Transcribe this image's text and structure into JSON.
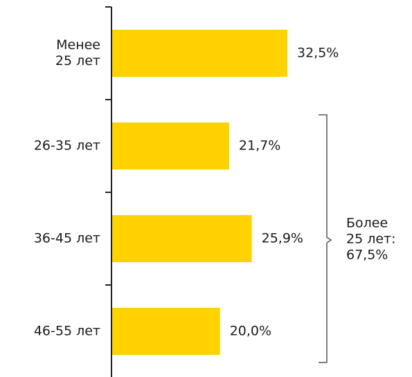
{
  "chart_data": {
    "type": "bar",
    "orientation": "horizontal",
    "categories": [
      "Менее\n25 лет",
      "26-35 лет",
      "36-45 лет",
      "46-55 лет"
    ],
    "values": [
      32.5,
      21.7,
      25.9,
      20.0
    ],
    "value_labels": [
      "32,5%",
      "21,7%",
      "25,9%",
      "20,0%"
    ],
    "color": "#ffd200",
    "annotation": "Более\n25 лет:\n67,5%"
  }
}
